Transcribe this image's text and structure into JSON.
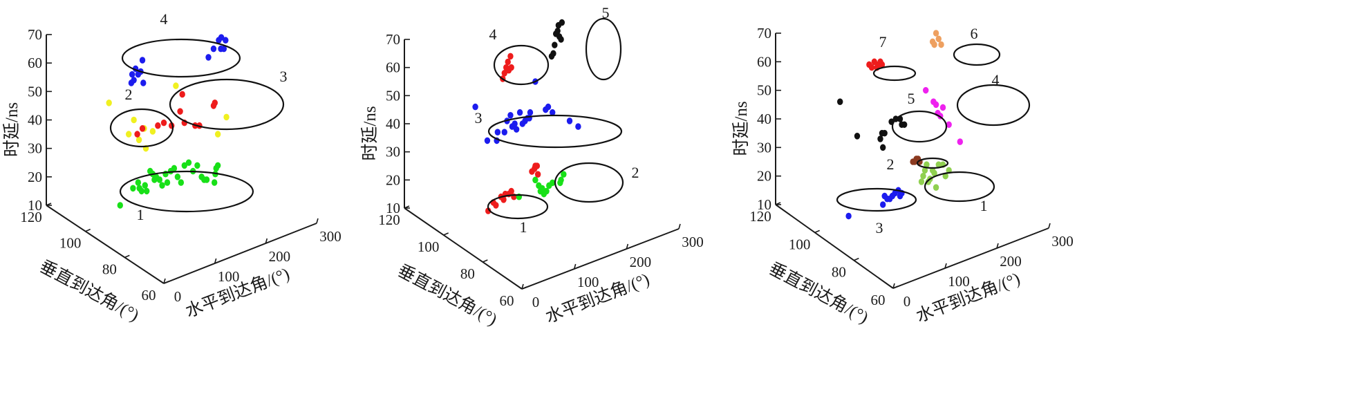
{
  "chart_data": [
    {
      "type": "scatter",
      "axes": {
        "zlabel": "时延/ns",
        "xlabel": "水平到达角/(°)",
        "ylabel": "垂直到达角/(°)",
        "zticks": [
          "10",
          "20",
          "30",
          "40",
          "50",
          "60",
          "70"
        ],
        "xticks": [
          "0",
          "100",
          "200",
          "300"
        ],
        "yticks": [
          "60",
          "80",
          "100",
          "120"
        ],
        "zlim": [
          10,
          70
        ],
        "xlim": [
          0,
          300
        ],
        "ylim": [
          60,
          120
        ]
      },
      "clusters": [
        {
          "label": "1",
          "color": "#18e018",
          "points": [
            [
              20,
              16
            ],
            [
              32,
              18
            ],
            [
              35,
              16
            ],
            [
              40,
              15
            ],
            [
              48,
              17
            ],
            [
              52,
              15
            ],
            [
              60,
              22
            ],
            [
              66,
              21
            ],
            [
              70,
              19
            ],
            [
              74,
              20
            ],
            [
              82,
              19
            ],
            [
              88,
              17
            ],
            [
              96,
              21
            ],
            [
              100,
              18
            ],
            [
              108,
              22
            ],
            [
              116,
              23
            ],
            [
              124,
              20
            ],
            [
              132,
              18
            ],
            [
              140,
              24
            ],
            [
              150,
              25
            ],
            [
              160,
              22
            ],
            [
              170,
              24
            ],
            [
              180,
              20
            ],
            [
              186,
              19
            ],
            [
              192,
              19
            ],
            [
              210,
              18
            ],
            [
              212,
              21
            ],
            [
              214,
              23
            ],
            [
              218,
              24
            ],
            [
              -10,
              10
            ]
          ]
        },
        {
          "label": "2",
          "color": "#f0f020",
          "points": [
            [
              10,
              35
            ],
            [
              22,
              40
            ],
            [
              34,
              33
            ],
            [
              46,
              37
            ],
            [
              50,
              30
            ],
            [
              66,
              36
            ],
            [
              -36,
              46
            ],
            [
              218,
              35
            ],
            [
              238,
              41
            ]
          ]
        },
        {
          "label": "2",
          "color": "#ee1c1c",
          "points": [
            [
              30,
              35
            ],
            [
              42,
              37
            ],
            [
              78,
              38
            ],
            [
              92,
              39
            ],
            [
              110,
              38
            ],
            [
              130,
              43
            ],
            [
              135,
              49
            ],
            [
              140,
              39
            ],
            [
              165,
              38
            ],
            [
              175,
              38
            ],
            [
              208,
              45
            ],
            [
              211,
              46
            ]
          ]
        },
        {
          "label": "3",
          "color": "#f0f020",
          "points": [
            [
              120,
              52
            ]
          ]
        },
        {
          "label": "4",
          "color": "#1c1cee",
          "points": [
            [
              16,
              53
            ],
            [
              18,
              56
            ],
            [
              22,
              54
            ],
            [
              26,
              58
            ],
            [
              32,
              56
            ],
            [
              38,
              57
            ],
            [
              42,
              61
            ],
            [
              44,
              53
            ],
            [
              196,
              62
            ],
            [
              208,
              65
            ],
            [
              220,
              68
            ],
            [
              225,
              65
            ],
            [
              226,
              69
            ],
            [
              232,
              65
            ],
            [
              236,
              68
            ]
          ]
        }
      ],
      "group_labels": [
        "1",
        "2",
        "3",
        "4"
      ]
    },
    {
      "type": "scatter",
      "axes": {
        "zlabel": "时延/ns",
        "xlabel": "水平到达角/(°)",
        "ylabel": "垂直到达角/(°)",
        "zticks": [
          "10",
          "20",
          "30",
          "40",
          "50",
          "60",
          "70"
        ],
        "xticks": [
          "0",
          "100",
          "200",
          "300"
        ],
        "yticks": [
          "60",
          "80",
          "100",
          "120"
        ],
        "zlim": [
          10,
          70
        ],
        "xlim": [
          0,
          300
        ],
        "ylim": [
          60,
          120
        ]
      },
      "clusters": [
        {
          "label": "1",
          "color": "#ee1c1c",
          "points": [
            [
              10,
              9
            ],
            [
              22,
              12
            ],
            [
              28,
              11
            ],
            [
              40,
              14
            ],
            [
              46,
              13
            ],
            [
              50,
              15
            ],
            [
              58,
              15
            ],
            [
              64,
              16
            ],
            [
              70,
              14
            ]
          ]
        },
        {
          "label": "2",
          "color": "#18e018",
          "points": [
            [
              82,
              14
            ],
            [
              120,
              20
            ],
            [
              128,
              18
            ],
            [
              132,
              16
            ],
            [
              136,
              17
            ],
            [
              140,
              15
            ],
            [
              146,
              16
            ],
            [
              152,
              18
            ],
            [
              160,
              19
            ],
            [
              178,
              19
            ],
            [
              180,
              20
            ],
            [
              186,
              22
            ]
          ]
        },
        {
          "label": "2",
          "color": "#ee1c1c",
          "points": [
            [
              112,
              23
            ],
            [
              118,
              24
            ],
            [
              120,
              25
            ],
            [
              124,
              25
            ],
            [
              126,
              22
            ]
          ]
        },
        {
          "label": "3",
          "color": "#1c1cee",
          "points": [
            [
              -20,
              46
            ],
            [
              8,
              34
            ],
            [
              30,
              34
            ],
            [
              32,
              37
            ],
            [
              48,
              37
            ],
            [
              54,
              41
            ],
            [
              62,
              43
            ],
            [
              66,
              39
            ],
            [
              72,
              40
            ],
            [
              76,
              38
            ],
            [
              84,
              44
            ],
            [
              90,
              40
            ],
            [
              96,
              41
            ],
            [
              102,
              42
            ],
            [
              106,
              42
            ],
            [
              108,
              44
            ],
            [
              120,
              55
            ],
            [
              144,
              45
            ],
            [
              150,
              46
            ],
            [
              160,
              44
            ],
            [
              200,
              41
            ],
            [
              220,
              39
            ]
          ]
        },
        {
          "label": "4",
          "color": "#ee1c1c",
          "points": [
            [
              44,
              56
            ],
            [
              48,
              58
            ],
            [
              52,
              60
            ],
            [
              56,
              62
            ],
            [
              58,
              59
            ],
            [
              62,
              64
            ],
            [
              64,
              60
            ]
          ]
        },
        {
          "label": "5",
          "color": "#111111",
          "points": [
            [
              158,
              64
            ],
            [
              162,
              65
            ],
            [
              165,
              68
            ],
            [
              168,
              72
            ],
            [
              172,
              73
            ],
            [
              174,
              75
            ],
            [
              176,
              71
            ],
            [
              180,
              70
            ],
            [
              182,
              76
            ]
          ]
        }
      ],
      "group_labels": [
        "1",
        "2",
        "3",
        "4",
        "5"
      ]
    },
    {
      "type": "scatter",
      "axes": {
        "zlabel": "时延/ns",
        "xlabel": "水平到达角/(°)",
        "ylabel": "垂直到达角/(°)",
        "zticks": [
          "10",
          "20",
          "30",
          "40",
          "50",
          "60",
          "70"
        ],
        "xticks": [
          "0",
          "100",
          "200",
          "300"
        ],
        "yticks": [
          "60",
          "80",
          "100",
          "120"
        ],
        "zlim": [
          10,
          70
        ],
        "xlim": [
          0,
          300
        ],
        "ylim": [
          60,
          120
        ]
      },
      "clusters": [
        {
          "label": "1",
          "color": "#90d050",
          "points": [
            [
              150,
              18
            ],
            [
              154,
              20
            ],
            [
              158,
              22
            ],
            [
              162,
              24
            ],
            [
              166,
              18
            ],
            [
              170,
              19
            ],
            [
              176,
              22
            ],
            [
              180,
              21
            ],
            [
              184,
              16
            ],
            [
              190,
              24
            ],
            [
              200,
              24
            ],
            [
              206,
              20
            ],
            [
              214,
              22
            ]
          ]
        },
        {
          "label": "2",
          "color": "#8b3a20",
          "points": [
            [
              130,
              25
            ],
            [
              134,
              25
            ],
            [
              138,
              26
            ],
            [
              142,
              26
            ],
            [
              146,
              25
            ]
          ]
        },
        {
          "label": "3",
          "color": "#1c1cee",
          "points": [
            [
              -20,
              6
            ],
            [
              60,
              10
            ],
            [
              64,
              13
            ],
            [
              70,
              12
            ],
            [
              76,
              12
            ],
            [
              82,
              13
            ],
            [
              88,
              14
            ],
            [
              96,
              15
            ],
            [
              100,
              13
            ],
            [
              104,
              14
            ]
          ]
        },
        {
          "label": "4",
          "color": "#ee22ee",
          "points": [
            [
              160,
              50
            ],
            [
              178,
              46
            ],
            [
              184,
              45
            ],
            [
              188,
              42
            ],
            [
              194,
              41
            ],
            [
              200,
              44
            ],
            [
              214,
              38
            ],
            [
              240,
              32
            ]
          ]
        },
        {
          "label": "5",
          "color": "#111111",
          "points": [
            [
              -40,
              46
            ],
            [
              0,
              34
            ],
            [
              54,
              33
            ],
            [
              58,
              35
            ],
            [
              60,
              30
            ],
            [
              64,
              35
            ],
            [
              80,
              39
            ],
            [
              90,
              40
            ],
            [
              100,
              40
            ],
            [
              104,
              38
            ],
            [
              110,
              38
            ]
          ]
        },
        {
          "label": "6",
          "color": "#eea060",
          "points": [
            [
              176,
              67
            ],
            [
              180,
              66
            ],
            [
              184,
              70
            ],
            [
              190,
              68
            ],
            [
              196,
              66
            ]
          ]
        },
        {
          "label": "7",
          "color": "#ee1c1c",
          "points": [
            [
              28,
              59
            ],
            [
              34,
              58
            ],
            [
              40,
              60
            ],
            [
              46,
              58
            ],
            [
              50,
              59
            ],
            [
              54,
              60
            ],
            [
              58,
              59
            ]
          ]
        }
      ],
      "group_labels": [
        "1",
        "2",
        "3",
        "4",
        "5",
        "6",
        "7"
      ]
    }
  ]
}
